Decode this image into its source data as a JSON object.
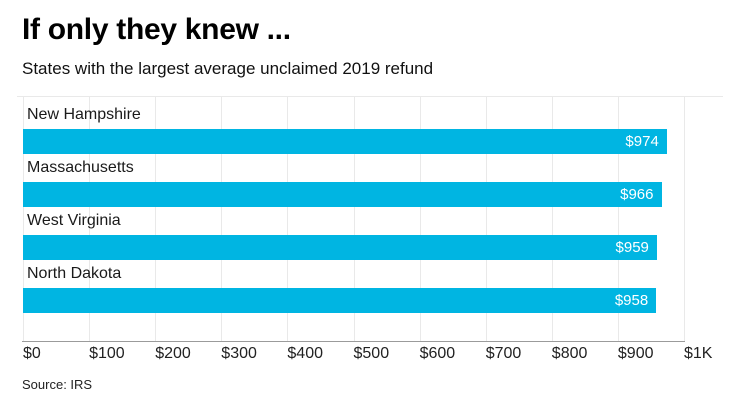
{
  "chart_data": {
    "type": "bar",
    "orientation": "horizontal",
    "title": "If only they knew ...",
    "subtitle": "States with the largest average unclaimed 2019 refund",
    "categories": [
      "New Hampshire",
      "Massachusetts",
      "West Virginia",
      "North Dakota"
    ],
    "values": [
      974,
      966,
      959,
      958
    ],
    "value_labels": [
      "$974",
      "$966",
      "$959",
      "$958"
    ],
    "xlabel": "",
    "ylabel": "",
    "xlim": [
      0,
      1000
    ],
    "x_ticks": [
      {
        "value": 0,
        "label": "$0"
      },
      {
        "value": 100,
        "label": "$100"
      },
      {
        "value": 200,
        "label": "$200"
      },
      {
        "value": 300,
        "label": "$300"
      },
      {
        "value": 400,
        "label": "$400"
      },
      {
        "value": 500,
        "label": "$500"
      },
      {
        "value": 600,
        "label": "$600"
      },
      {
        "value": 700,
        "label": "$700"
      },
      {
        "value": 800,
        "label": "$800"
      },
      {
        "value": 900,
        "label": "$900"
      },
      {
        "value": 1000,
        "label": "$1K"
      }
    ],
    "grid": true,
    "legend": "none",
    "bar_color": "#00b5e2",
    "value_label_color": "#ffffff",
    "source": "Source: IRS"
  }
}
